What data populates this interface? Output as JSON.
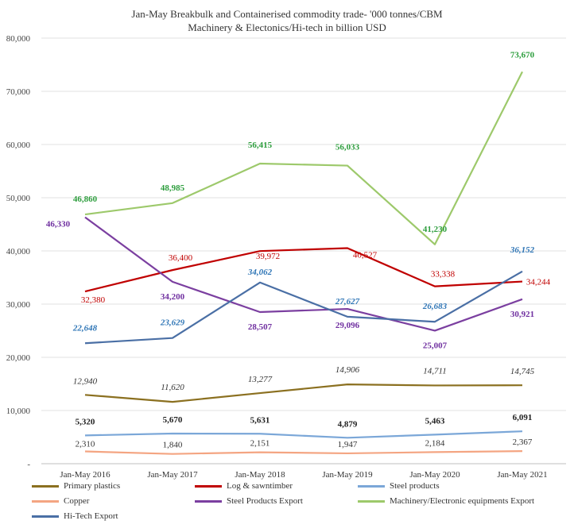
{
  "chart_data": {
    "type": "line",
    "title": "Jan-May Breakbulk and Containerised commodity trade- '000 tonnes/CBM",
    "subtitle": "Machinery & Electonics/Hi-tech in billion USD",
    "categories": [
      "Jan-May 2016",
      "Jan-May 2017",
      "Jan-May 2018",
      "Jan-May 2019",
      "Jan-May 2020",
      "Jan-May 2021"
    ],
    "ylim": [
      0,
      80000
    ],
    "yticks": [
      "-",
      "10,000",
      "20,000",
      "30,000",
      "40,000",
      "50,000",
      "60,000",
      "70,000",
      "80,000"
    ],
    "ytick_values": [
      0,
      10000,
      20000,
      30000,
      40000,
      50000,
      60000,
      70000,
      80000
    ],
    "grid": true,
    "legend_position": "bottom",
    "series": [
      {
        "name": "Primary plastics",
        "color": "#8B7020",
        "values": [
          12940,
          11620,
          13277,
          14906,
          14711,
          14745
        ],
        "labels": [
          "12,940",
          "11,620",
          "13,277",
          "14,906",
          "14,711",
          "14,745"
        ],
        "label_style": "italic",
        "label_color": "#333333"
      },
      {
        "name": "Log & sawntimber",
        "color": "#C00000",
        "values": [
          32380,
          36400,
          39972,
          40527,
          33338,
          34244
        ],
        "labels": [
          "32,380",
          "36,400",
          "39,972",
          "40,527",
          "33,338",
          "34,244"
        ],
        "label_style": "normal",
        "label_color": "#C00000"
      },
      {
        "name": "Steel products",
        "color": "#7BA7D8",
        "values": [
          5320,
          5670,
          5631,
          4879,
          5463,
          6091
        ],
        "labels": [
          "5,320",
          "5,670",
          "5,631",
          "4,879",
          "5,463",
          "6,091"
        ],
        "label_style": "bold",
        "label_color": "#222222"
      },
      {
        "name": "Copper",
        "color": "#F4A582",
        "values": [
          2310,
          1840,
          2151,
          1947,
          2184,
          2367
        ],
        "labels": [
          "2,310",
          "1,840",
          "2,151",
          "1,947",
          "2,184",
          "2,367"
        ],
        "label_style": "normal",
        "label_color": "#333333"
      },
      {
        "name": "Steel Products Export",
        "color": "#7B3FA0",
        "values": [
          46330,
          34200,
          28507,
          29096,
          25007,
          30921
        ],
        "labels": [
          "46,330",
          "34,200",
          "28,507",
          "29,096",
          "25,007",
          "30,921"
        ],
        "label_style": "bold",
        "label_color": "#7030A0"
      },
      {
        "name": "Machinery/Electronic equipments Export",
        "color": "#9DC96B",
        "values": [
          46860,
          48985,
          56415,
          56033,
          41230,
          73670
        ],
        "labels": [
          "46,860",
          "48,985",
          "56,415",
          "56,033",
          "41,230",
          "73,670"
        ],
        "label_style": "bold",
        "label_color": "#2E9E3E"
      },
      {
        "name": "Hi-Tech Export",
        "color": "#4A6FA5",
        "values": [
          22648,
          23629,
          34062,
          27627,
          26683,
          36152
        ],
        "labels": [
          "22,648",
          "23,629",
          "34,062",
          "27,627",
          "26,683",
          "36,152"
        ],
        "label_style": "bolditalic",
        "label_color": "#2E75B6"
      }
    ]
  }
}
